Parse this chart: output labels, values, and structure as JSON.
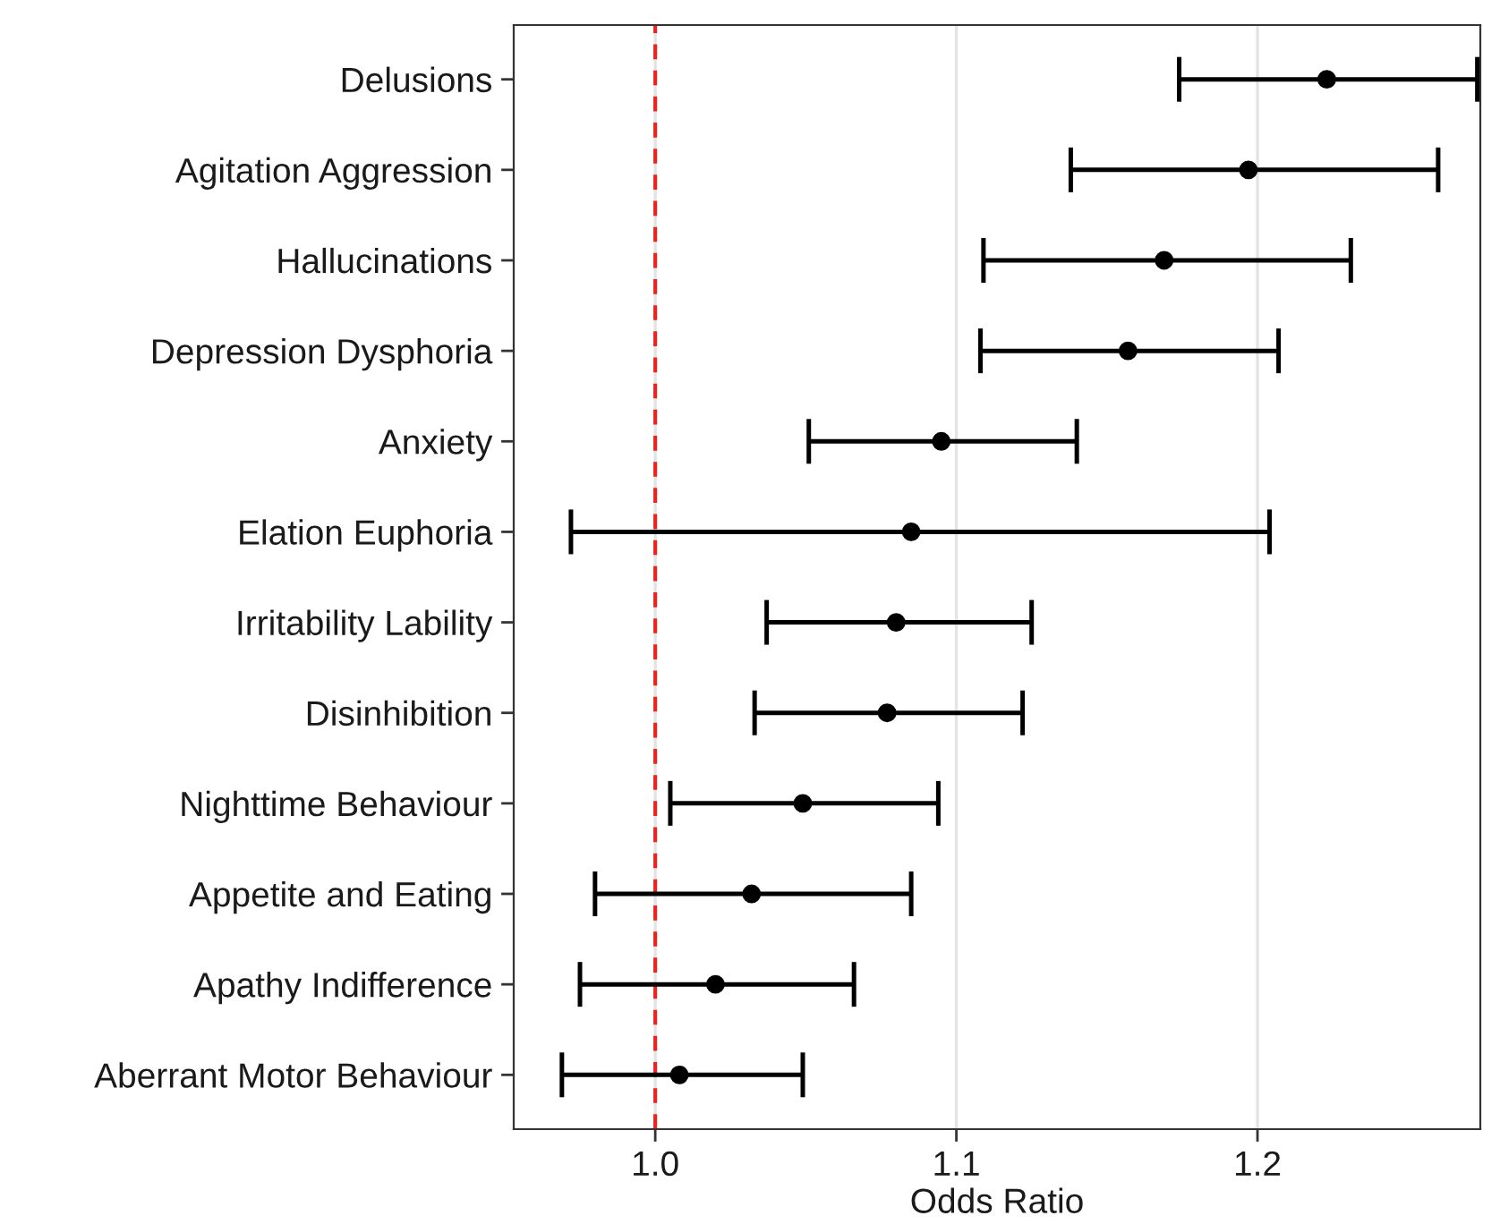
{
  "chart_data": {
    "type": "scatter",
    "orientation": "horizontal",
    "xlabel": "Odds Ratio",
    "categories": [
      "Delusions",
      "Agitation Aggression",
      "Hallucinations",
      "Depression Dysphoria",
      "Anxiety",
      "Elation Euphoria",
      "Irritability Lability",
      "Disinhibition",
      "Nighttime Behaviour",
      "Appetite and Eating",
      "Apathy Indifference",
      "Aberrant Motor Behaviour"
    ],
    "series": [
      {
        "color": "#000000",
        "values": [
          1.223,
          1.197,
          1.169,
          1.157,
          1.095,
          1.085,
          1.08,
          1.077,
          1.049,
          1.032,
          1.02,
          1.008
        ],
        "errors": [
          [
            1.174,
            1.273
          ],
          [
            1.138,
            1.26
          ],
          [
            1.109,
            1.231
          ],
          [
            1.108,
            1.207
          ],
          [
            1.051,
            1.14
          ],
          [
            0.972,
            1.204
          ],
          [
            1.037,
            1.125
          ],
          [
            1.033,
            1.122
          ],
          [
            1.005,
            1.094
          ],
          [
            0.98,
            1.085
          ],
          [
            0.975,
            1.066
          ],
          [
            0.969,
            1.049
          ]
        ]
      }
    ],
    "xlim": [
      0.953,
      1.274
    ],
    "xticks": [
      {
        "value": 1.0,
        "label": "1.0"
      },
      {
        "value": 1.1,
        "label": "1.1"
      },
      {
        "value": 1.2,
        "label": "1.2"
      }
    ],
    "grid": "x",
    "marker": "circle",
    "ref_lines": [
      {
        "axis": "x",
        "value": 1.0,
        "color": "#e8251f",
        "line_style": "dashed"
      }
    ]
  }
}
